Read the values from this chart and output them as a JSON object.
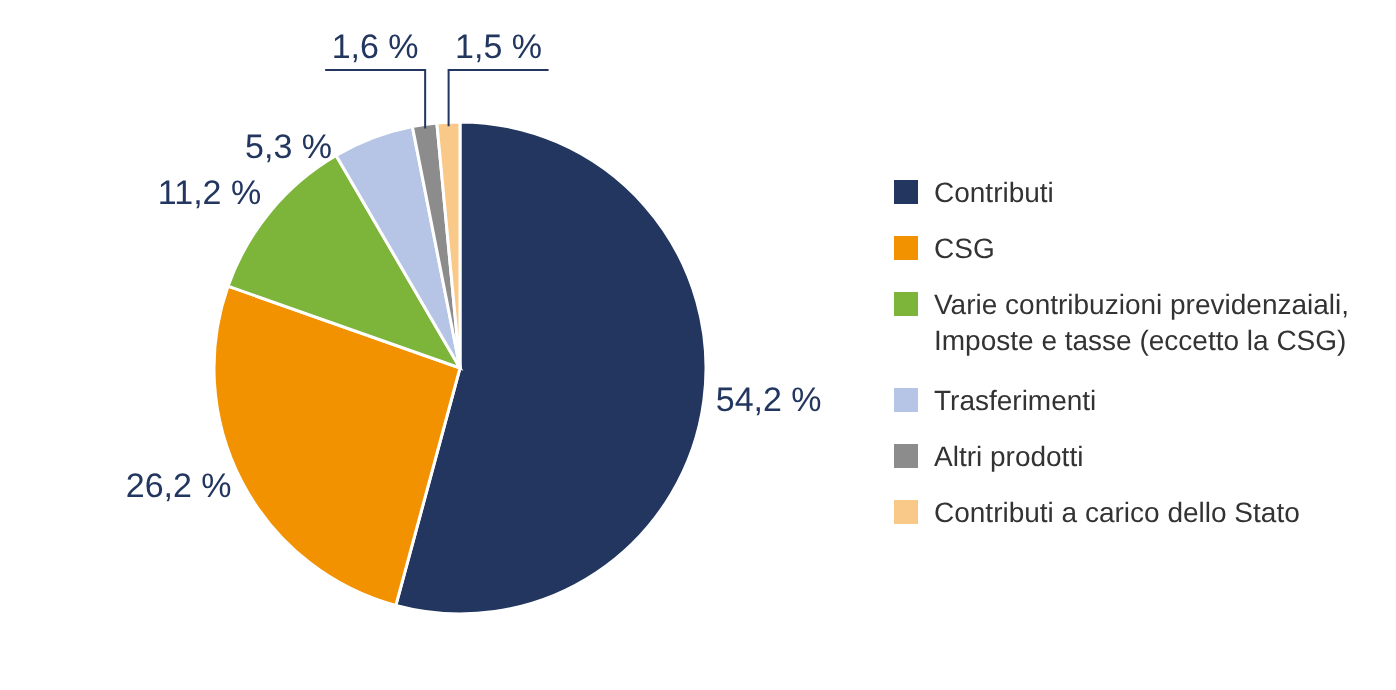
{
  "chart_data": {
    "type": "pie",
    "categories": [
      "Contributi",
      "CSG",
      "Varie contribuzioni previdenzaiali, Imposte e tasse (eccetto la CSG)",
      "Trasferimenti",
      "Altri prodotti",
      "Contributi a carico dello Stato"
    ],
    "values": [
      54.2,
      26.2,
      11.2,
      5.3,
      1.6,
      1.5
    ],
    "colors": [
      "#22365f",
      "#f39200",
      "#7cb53a",
      "#b6c5e6",
      "#8c8c8c",
      "#f9c98a"
    ],
    "value_labels": [
      "54,2 %",
      "26,2 %",
      "11,2 %",
      "5,3 %",
      "1,6 %",
      "1,5 %"
    ],
    "legend": "right"
  }
}
